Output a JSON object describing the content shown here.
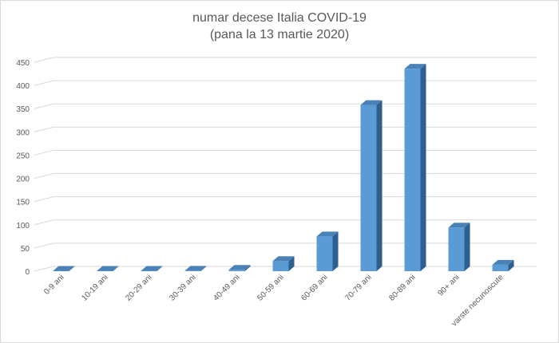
{
  "chart_data": {
    "type": "bar",
    "title": "numar decese Italia COVID-19",
    "subtitle": "(pana la 13 martie 2020)",
    "xlabel": "",
    "ylabel": "",
    "categories": [
      "0-9 ani",
      "10-19 ani",
      "20-29 ani",
      "30-39 ani",
      "40-49 ani",
      "50-59 ani",
      "60-69 ani",
      "70-79 ani",
      "80-89 ani",
      "90+ ani",
      "varste necunoscute"
    ],
    "values": [
      0,
      0,
      0,
      1,
      3,
      22,
      75,
      358,
      436,
      94,
      14
    ],
    "ylim": [
      0,
      450
    ],
    "yticks": [
      0,
      50,
      100,
      150,
      200,
      250,
      300,
      350,
      400,
      450
    ],
    "grid": true,
    "legend": "none",
    "style": "3d-column",
    "colors": {
      "bar_front": "#5b9bd5",
      "bar_side": "#2e5f8e",
      "bar_top": "#4a82b8",
      "grid": "#d9d9d9",
      "text": "#595959"
    }
  }
}
